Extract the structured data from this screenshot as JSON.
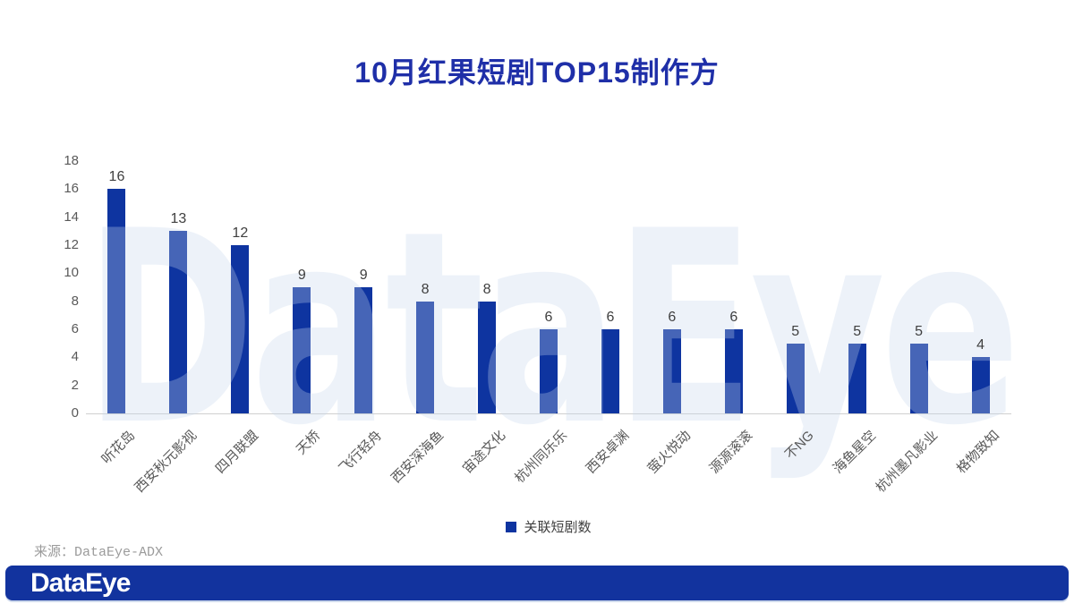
{
  "title": "10月红果短剧TOP15制作方",
  "source": "来源：DataEye-ADX",
  "watermark": "DataEye",
  "legend": {
    "label": "关联短剧数"
  },
  "footer": {
    "logo_text": "DataEye"
  },
  "colors": {
    "bar": "#0E34A0",
    "title": "#1F2FA8",
    "footer_bar": "#12339E",
    "axis_text": "#595959",
    "value_label": "#3F3F3F",
    "baseline": "#D0D0D0",
    "watermark_fill": "#C6D7EC"
  },
  "chart_data": {
    "type": "bar",
    "title": "10月红果短剧TOP15制作方",
    "categories": [
      "听花岛",
      "西安秋元影视",
      "四月联盟",
      "天桥",
      "飞行轻舟",
      "西安深海鱼",
      "宙途文化",
      "杭州同乐乐",
      "西安卓渊",
      "萤火悦动",
      "源源滚滚",
      "不NG",
      "海鱼星空",
      "杭州墨凡影业",
      "格物致知"
    ],
    "series": [
      {
        "name": "关联短剧数",
        "values": [
          16,
          13,
          12,
          9,
          9,
          8,
          8,
          6,
          6,
          6,
          6,
          5,
          5,
          5,
          4
        ]
      }
    ],
    "xlabel": "",
    "ylabel": "",
    "ylim": [
      0,
      18
    ],
    "ytick_step": 2,
    "grid": false,
    "legend_position": "bottom",
    "data_labels": true
  }
}
